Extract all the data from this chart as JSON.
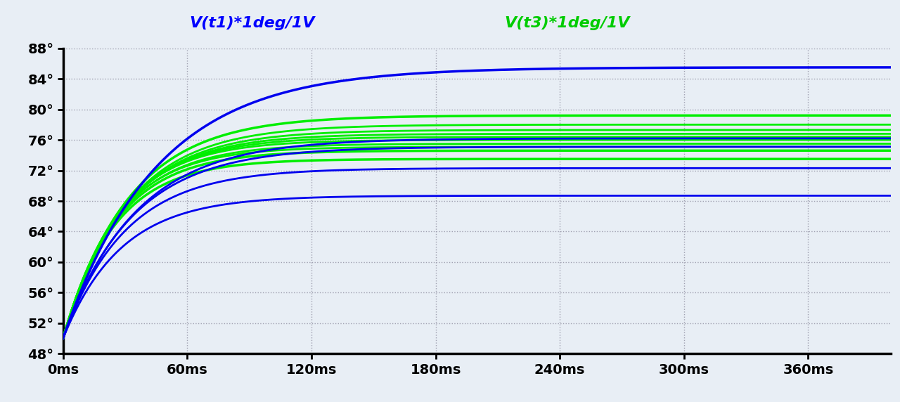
{
  "title_blue": "V(t1)*1deg/1V",
  "title_green": "V(t3)*1deg/1V",
  "title_blue_color": "#0000FF",
  "title_green_color": "#00CC00",
  "bg_color": "#E8EEF5",
  "plot_bg_color": "#E8EEF5",
  "grid_color": "#9999AA",
  "blue_color": "#0000EE",
  "green_color": "#00EE00",
  "xmin": 0,
  "xmax": 400,
  "ymin": 48,
  "ymax": 88,
  "xticks": [
    0,
    60,
    120,
    180,
    240,
    300,
    360
  ],
  "yticks": [
    48,
    52,
    56,
    60,
    64,
    68,
    72,
    76,
    80,
    84,
    88
  ],
  "blue_curves": [
    {
      "final": 85.5,
      "tau": 45,
      "start": 50.0,
      "lw": 2.5
    },
    {
      "final": 76.2,
      "tau": 35,
      "start": 50.0,
      "lw": 2.0
    },
    {
      "final": 75.1,
      "tau": 33,
      "start": 50.0,
      "lw": 2.0
    },
    {
      "final": 72.3,
      "tau": 30,
      "start": 50.0,
      "lw": 2.0
    },
    {
      "final": 68.7,
      "tau": 28,
      "start": 50.0,
      "lw": 2.0
    }
  ],
  "green_curves": [
    {
      "final": 79.2,
      "tau": 32,
      "start": 50.0,
      "lw": 2.5
    },
    {
      "final": 78.0,
      "tau": 31,
      "start": 50.0,
      "lw": 2.0
    },
    {
      "final": 77.3,
      "tau": 30,
      "start": 50.0,
      "lw": 2.0
    },
    {
      "final": 76.8,
      "tau": 29,
      "start": 50.0,
      "lw": 2.0
    },
    {
      "final": 76.4,
      "tau": 28,
      "start": 50.0,
      "lw": 2.0
    },
    {
      "final": 76.0,
      "tau": 27,
      "start": 50.0,
      "lw": 2.0
    },
    {
      "final": 75.5,
      "tau": 27,
      "start": 50.0,
      "lw": 2.0
    },
    {
      "final": 75.1,
      "tau": 26,
      "start": 50.0,
      "lw": 2.0
    },
    {
      "final": 74.6,
      "tau": 26,
      "start": 50.0,
      "lw": 2.5
    },
    {
      "final": 73.5,
      "tau": 25,
      "start": 50.0,
      "lw": 2.5
    }
  ],
  "figwidth": 12.8,
  "figheight": 5.72,
  "dpi": 100
}
